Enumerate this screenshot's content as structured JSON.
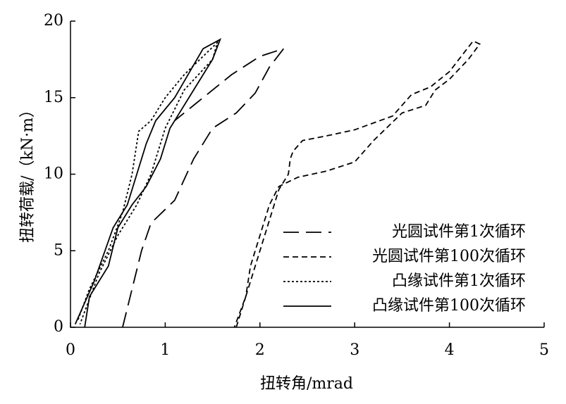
{
  "chart_data": {
    "type": "line",
    "xlabel": "扭转角/mrad",
    "ylabel": "扭转荷载/（kN·m）",
    "xlim": [
      0,
      5
    ],
    "ylim": [
      0,
      20
    ],
    "xticks": [
      0,
      1,
      2,
      3,
      4,
      5
    ],
    "yticks": [
      0,
      5,
      10,
      15,
      20
    ],
    "legend": "lower right",
    "series": [
      {
        "name": "光圆试件第1次循环",
        "color": "#000000",
        "dash": "long",
        "x": [
          0.55,
          0.75,
          0.85,
          1.1,
          1.3,
          1.5,
          1.75,
          1.95,
          2.1,
          2.25,
          2.0,
          1.7,
          1.3,
          1.1
        ],
        "values": [
          0,
          5,
          6.8,
          8.3,
          11,
          13,
          14,
          15.3,
          17,
          18.2,
          17.7,
          16.5,
          14.5,
          13.5
        ]
      },
      {
        "name": "光圆试件第100次循环",
        "color": "#000000",
        "dash": "short",
        "x": [
          1.75,
          1.85,
          1.9,
          2.0,
          2.1,
          2.2,
          2.4,
          2.7,
          3.0,
          3.2,
          3.5,
          3.75,
          3.85,
          4.0,
          4.2,
          4.32,
          4.25,
          4.0,
          3.8,
          3.6,
          3.4,
          3.0,
          2.7,
          2.45,
          2.35,
          2.32,
          2.3,
          2.2,
          2.05,
          1.95,
          1.85,
          1.73
        ],
        "values": [
          0,
          2,
          4,
          6,
          8,
          9.2,
          9.8,
          10.2,
          10.8,
          12.2,
          14,
          14.5,
          15.5,
          16.2,
          17.5,
          18.5,
          18.7,
          16.7,
          15.7,
          15.2,
          13.8,
          12.9,
          12.5,
          12.2,
          11.5,
          11,
          10,
          9,
          6,
          4,
          2,
          0
        ]
      },
      {
        "name": "凸缘试件第1次循环",
        "color": "#000000",
        "dash": "dotted",
        "x": [
          0.08,
          0.2,
          0.4,
          0.55,
          0.65,
          0.72,
          0.85,
          1.0,
          1.2,
          1.55,
          1.5,
          1.2,
          1.0,
          0.85,
          0.7,
          0.5,
          0.3,
          0.1
        ],
        "values": [
          0.5,
          2.5,
          5,
          7.5,
          10,
          12.8,
          13.5,
          15,
          16.5,
          18.6,
          17.5,
          15.5,
          13,
          10,
          8,
          6,
          3.5,
          0.2
        ]
      },
      {
        "name": "凸缘试件第100次循环",
        "color": "#000000",
        "dash": "solid",
        "x": [
          0.15,
          0.2,
          0.4,
          0.5,
          0.65,
          0.8,
          0.95,
          1.05,
          1.3,
          1.5,
          1.58,
          1.4,
          1.1,
          0.9,
          0.8,
          0.7,
          0.6,
          0.45,
          0.25,
          0.05
        ],
        "values": [
          0,
          2,
          4,
          6.5,
          8,
          9.2,
          11,
          13,
          15.5,
          17.5,
          18.8,
          18.2,
          15,
          13.5,
          12,
          10,
          8,
          6.5,
          3,
          0.2
        ]
      }
    ]
  }
}
